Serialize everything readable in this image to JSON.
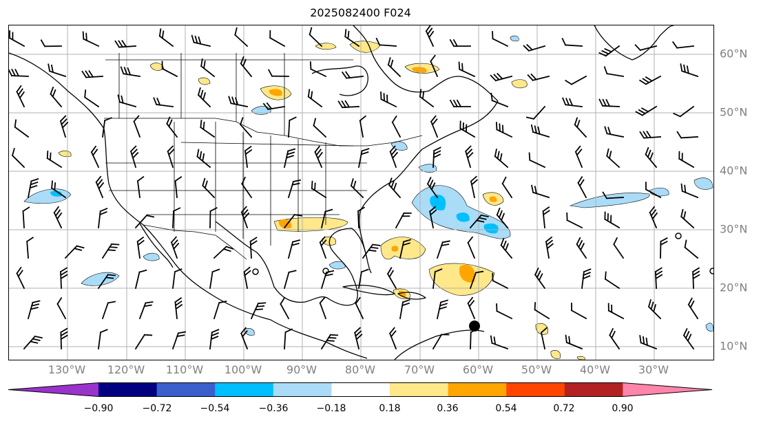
{
  "title": "2025082400 F024",
  "lon_labels": [
    "130°W",
    "120°W",
    "110°W",
    "100°W",
    "90°W",
    "80°W",
    "70°W",
    "60°W",
    "50°W",
    "40°W",
    "30°W"
  ],
  "lat_labels": [
    "60°N",
    "50°N",
    "40°N",
    "30°N",
    "20°N",
    "10°N"
  ],
  "colorbar": {
    "ticks": [
      "−0.90",
      "−0.72",
      "−0.54",
      "−0.36",
      "−0.18",
      "0.18",
      "0.36",
      "0.54",
      "0.72",
      "0.90"
    ],
    "colors": [
      "#9933cc",
      "#000080",
      "#3a5fcd",
      "#00bfff",
      "#aadcf8",
      "#ffffff",
      "#fee88a",
      "#ffa500",
      "#ff4500",
      "#b22222",
      "#ff85aa"
    ]
  },
  "map": {
    "extent": "135°W–15°W, 7°N–65°N",
    "gridlines": true,
    "wind_barbs": true
  }
}
